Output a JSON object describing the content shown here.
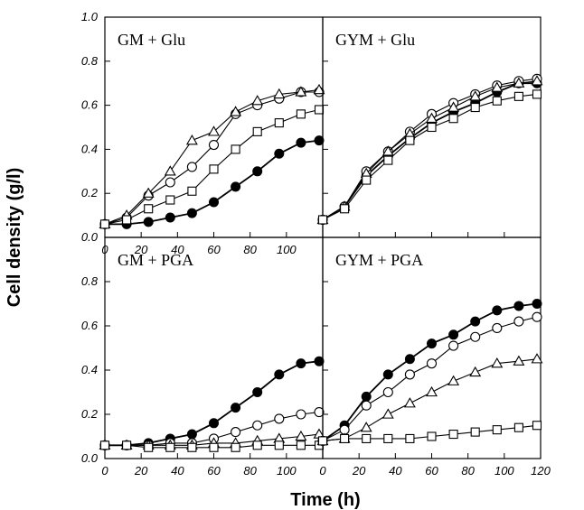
{
  "figure": {
    "xlabel": "Time (h)",
    "ylabel": "Cell density (g/l)",
    "marker_legend": [
      "filled-circle",
      "open-circle",
      "open-triangle",
      "open-square"
    ]
  },
  "chart_data": [
    {
      "type": "line",
      "title": "GM + Glu",
      "xlim": [
        0,
        120
      ],
      "ylim": [
        0.0,
        1.0
      ],
      "y_ticks": [
        "0.0",
        "0.2",
        "0.4",
        "0.6",
        "0.8",
        "1.0"
      ],
      "x_ticks": [
        "0",
        "20",
        "40",
        "60",
        "80",
        "100"
      ],
      "series": [
        {
          "marker": "filled-circle",
          "x": [
            0,
            12,
            24,
            36,
            48,
            60,
            72,
            84,
            96,
            108,
            118
          ],
          "y": [
            0.06,
            0.06,
            0.07,
            0.09,
            0.11,
            0.16,
            0.23,
            0.3,
            0.38,
            0.43,
            0.44
          ]
        },
        {
          "marker": "open-circle",
          "x": [
            0,
            12,
            24,
            36,
            48,
            60,
            72,
            84,
            96,
            108,
            118
          ],
          "y": [
            0.06,
            0.09,
            0.19,
            0.25,
            0.32,
            0.42,
            0.56,
            0.6,
            0.63,
            0.66,
            0.66
          ]
        },
        {
          "marker": "open-triangle",
          "x": [
            0,
            12,
            24,
            36,
            48,
            60,
            72,
            84,
            96,
            108,
            118
          ],
          "y": [
            0.06,
            0.1,
            0.2,
            0.3,
            0.44,
            0.48,
            0.57,
            0.62,
            0.65,
            0.66,
            0.67
          ]
        },
        {
          "marker": "open-square",
          "x": [
            0,
            12,
            24,
            36,
            48,
            60,
            72,
            84,
            96,
            108,
            118
          ],
          "y": [
            0.06,
            0.08,
            0.13,
            0.17,
            0.21,
            0.31,
            0.4,
            0.48,
            0.52,
            0.56,
            0.58
          ]
        }
      ]
    },
    {
      "type": "line",
      "title": "GYM + Glu",
      "xlim": [
        0,
        120
      ],
      "ylim": [
        0.0,
        1.0
      ],
      "y_ticks": [],
      "x_ticks": [],
      "series": [
        {
          "marker": "filled-circle",
          "x": [
            0,
            12,
            24,
            36,
            48,
            60,
            72,
            84,
            96,
            108,
            118
          ],
          "y": [
            0.08,
            0.14,
            0.28,
            0.37,
            0.45,
            0.52,
            0.57,
            0.61,
            0.66,
            0.7,
            0.7
          ]
        },
        {
          "marker": "open-circle",
          "x": [
            0,
            12,
            24,
            36,
            48,
            60,
            72,
            84,
            96,
            108,
            118
          ],
          "y": [
            0.08,
            0.14,
            0.3,
            0.39,
            0.48,
            0.56,
            0.61,
            0.65,
            0.69,
            0.71,
            0.72
          ]
        },
        {
          "marker": "open-triangle",
          "x": [
            0,
            12,
            24,
            36,
            48,
            60,
            72,
            84,
            96,
            108,
            118
          ],
          "y": [
            0.08,
            0.14,
            0.29,
            0.39,
            0.47,
            0.54,
            0.59,
            0.64,
            0.68,
            0.7,
            0.71
          ]
        },
        {
          "marker": "open-square",
          "x": [
            0,
            12,
            24,
            36,
            48,
            60,
            72,
            84,
            96,
            108,
            118
          ],
          "y": [
            0.08,
            0.13,
            0.26,
            0.35,
            0.44,
            0.5,
            0.54,
            0.59,
            0.62,
            0.64,
            0.65
          ]
        }
      ]
    },
    {
      "type": "line",
      "title": "GM + PGA",
      "xlim": [
        0,
        120
      ],
      "ylim": [
        0.0,
        1.0
      ],
      "y_ticks": [
        "0.0",
        "0.2",
        "0.4",
        "0.6",
        "0.8"
      ],
      "x_ticks": [
        "0",
        "20",
        "40",
        "60",
        "80",
        "100"
      ],
      "series": [
        {
          "marker": "filled-circle",
          "x": [
            0,
            12,
            24,
            36,
            48,
            60,
            72,
            84,
            96,
            108,
            118
          ],
          "y": [
            0.06,
            0.06,
            0.07,
            0.09,
            0.11,
            0.16,
            0.23,
            0.3,
            0.38,
            0.43,
            0.44
          ]
        },
        {
          "marker": "open-circle",
          "x": [
            0,
            12,
            24,
            36,
            48,
            60,
            72,
            84,
            96,
            108,
            118
          ],
          "y": [
            0.06,
            0.06,
            0.06,
            0.07,
            0.07,
            0.09,
            0.12,
            0.15,
            0.18,
            0.2,
            0.21
          ]
        },
        {
          "marker": "open-triangle",
          "x": [
            0,
            12,
            24,
            36,
            48,
            60,
            72,
            84,
            96,
            108,
            118
          ],
          "y": [
            0.06,
            0.06,
            0.06,
            0.06,
            0.06,
            0.07,
            0.07,
            0.08,
            0.09,
            0.1,
            0.11
          ]
        },
        {
          "marker": "open-square",
          "x": [
            0,
            12,
            24,
            36,
            48,
            60,
            72,
            84,
            96,
            108,
            118
          ],
          "y": [
            0.06,
            0.06,
            0.05,
            0.05,
            0.05,
            0.05,
            0.05,
            0.06,
            0.06,
            0.06,
            0.06
          ]
        }
      ]
    },
    {
      "type": "line",
      "title": "GYM + PGA",
      "xlim": [
        0,
        120
      ],
      "ylim": [
        0.0,
        1.0
      ],
      "y_ticks": [],
      "x_ticks": [
        "0",
        "20",
        "40",
        "60",
        "80",
        "100",
        "120"
      ],
      "series": [
        {
          "marker": "filled-circle",
          "x": [
            0,
            12,
            24,
            36,
            48,
            60,
            72,
            84,
            96,
            108,
            118
          ],
          "y": [
            0.08,
            0.15,
            0.28,
            0.38,
            0.45,
            0.52,
            0.56,
            0.62,
            0.67,
            0.69,
            0.7
          ]
        },
        {
          "marker": "open-circle",
          "x": [
            0,
            12,
            24,
            36,
            48,
            60,
            72,
            84,
            96,
            108,
            118
          ],
          "y": [
            0.08,
            0.13,
            0.24,
            0.3,
            0.38,
            0.43,
            0.51,
            0.55,
            0.59,
            0.62,
            0.64
          ]
        },
        {
          "marker": "open-triangle",
          "x": [
            0,
            12,
            24,
            36,
            48,
            60,
            72,
            84,
            96,
            108,
            118
          ],
          "y": [
            0.08,
            0.09,
            0.14,
            0.2,
            0.25,
            0.3,
            0.35,
            0.39,
            0.43,
            0.44,
            0.45
          ]
        },
        {
          "marker": "open-square",
          "x": [
            0,
            12,
            24,
            36,
            48,
            60,
            72,
            84,
            96,
            108,
            118
          ],
          "y": [
            0.08,
            0.09,
            0.09,
            0.09,
            0.09,
            0.1,
            0.11,
            0.12,
            0.13,
            0.14,
            0.15
          ]
        }
      ]
    }
  ]
}
